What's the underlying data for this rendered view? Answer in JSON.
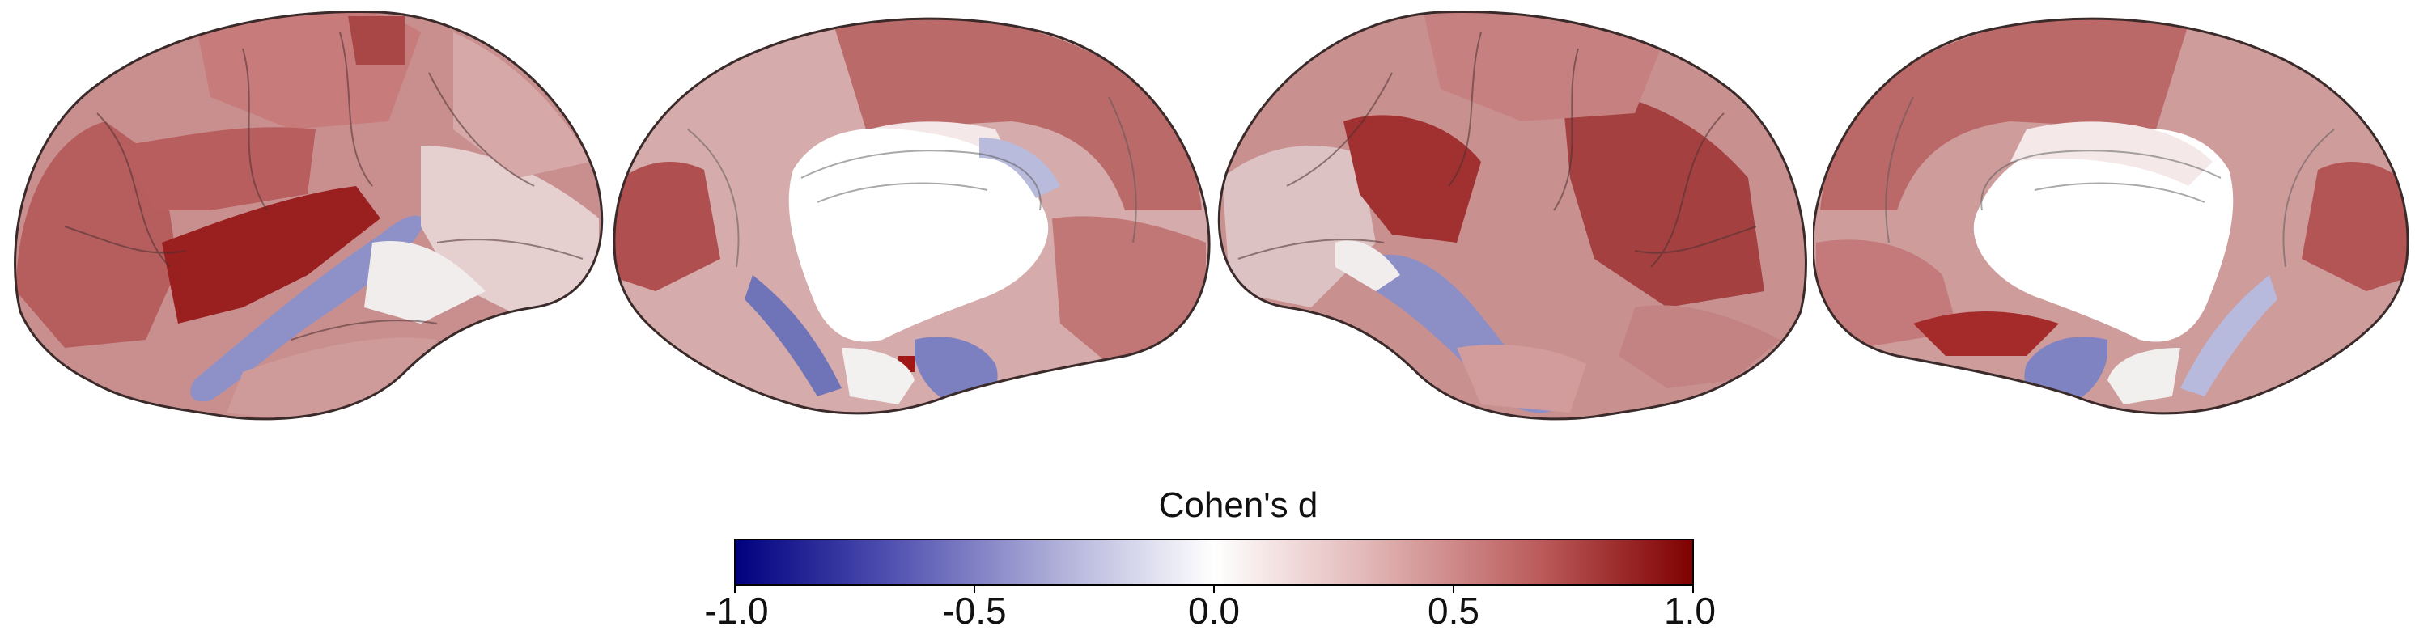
{
  "figure": {
    "views": [
      {
        "hemisphere": "left",
        "view": "lateral"
      },
      {
        "hemisphere": "left",
        "view": "medial"
      },
      {
        "hemisphere": "right",
        "view": "lateral"
      },
      {
        "hemisphere": "right",
        "view": "medial"
      }
    ]
  },
  "colorbar": {
    "title": "Cohen's d",
    "range": [
      -1.0,
      1.0
    ],
    "ticks": [
      "-1.0",
      "-0.5",
      "0.0",
      "0.5",
      "1.0"
    ],
    "colormap": [
      "#00007f",
      "#4f4fb0",
      "#b6b6dc",
      "#ffffff",
      "#e4bcbc",
      "#bb5b5b",
      "#7f0000"
    ]
  }
}
